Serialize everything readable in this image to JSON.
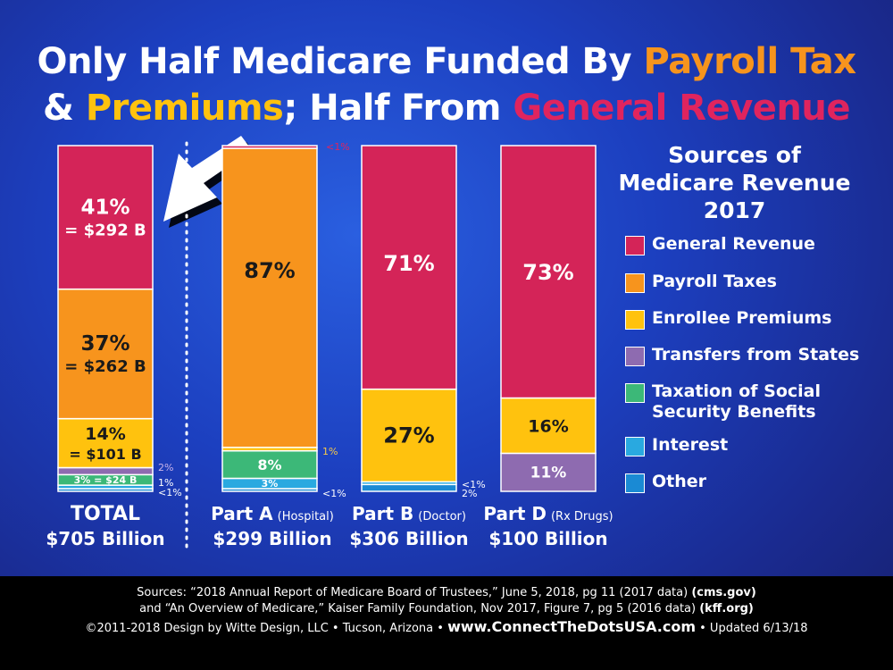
{
  "title": {
    "line1": [
      {
        "text": "Only Half Medicare Funded By ",
        "color": "#ffffff"
      },
      {
        "text": "Payroll Tax",
        "color": "#f7941d"
      }
    ],
    "line2": [
      {
        "text": "& ",
        "color": "#ffffff"
      },
      {
        "text": "Premiums",
        "color": "#ffc20e"
      },
      {
        "text": "; Half From ",
        "color": "#ffffff"
      },
      {
        "text": "General Revenue",
        "color": "#e0245e"
      }
    ]
  },
  "legend": {
    "title": [
      "Sources of",
      "Medicare Revenue",
      "2017"
    ],
    "items": [
      {
        "label": "General Revenue",
        "color": "#d42458"
      },
      {
        "label": "Payroll Taxes",
        "color": "#f7941d"
      },
      {
        "label": "Enrollee Premiums",
        "color": "#ffc20e"
      },
      {
        "label": "Transfers from States",
        "color": "#8e6bb0"
      },
      {
        "label": "Taxation of Social Security Benefits",
        "color": "#3cb878"
      },
      {
        "label": "Interest",
        "color": "#29a9e0"
      },
      {
        "label": "Other",
        "color": "#1a8ad4"
      }
    ]
  },
  "chart_data": {
    "type": "bar",
    "stacked": true,
    "normalized_percent": true,
    "categories": [
      "TOTAL",
      "Part A",
      "Part B",
      "Part D"
    ],
    "category_notes": [
      "",
      "(Hospital)",
      "(Doctor)",
      "(Rx Drugs)"
    ],
    "category_totals": [
      "$705 Billion",
      "$299 Billion",
      "$306 Billion",
      "$100 Billion"
    ],
    "series": [
      {
        "name": "General Revenue",
        "color": "#d42458",
        "values": [
          41,
          0.5,
          71,
          73
        ],
        "labels": [
          [
            "41%",
            "= $292 B"
          ],
          [
            "<1%"
          ],
          [
            "71%"
          ],
          [
            "73%"
          ]
        ]
      },
      {
        "name": "Payroll Taxes",
        "color": "#f7941d",
        "values": [
          37,
          87,
          0,
          0
        ],
        "labels": [
          [
            "37%",
            "= $262 B"
          ],
          [
            "87%"
          ],
          [],
          []
        ]
      },
      {
        "name": "Enrollee Premiums",
        "color": "#ffc20e",
        "values": [
          14,
          1,
          27,
          16
        ],
        "labels": [
          [
            "14%",
            "= $101 B"
          ],
          [
            "1%"
          ],
          [
            "27%"
          ],
          [
            "16%"
          ]
        ]
      },
      {
        "name": "Transfers from States",
        "color": "#8e6bb0",
        "values": [
          2,
          0,
          0,
          11
        ],
        "labels": [
          [
            "2%"
          ],
          [],
          [],
          [
            "11%"
          ]
        ]
      },
      {
        "name": "Taxation of Social Security Benefits",
        "color": "#3cb878",
        "values": [
          3,
          8,
          0,
          0
        ],
        "labels": [
          [
            "3% = $24 B"
          ],
          [
            "8%"
          ],
          [],
          []
        ]
      },
      {
        "name": "Interest",
        "color": "#29a9e0",
        "values": [
          1,
          3,
          0.5,
          0
        ],
        "labels": [
          [
            "1%"
          ],
          [
            "3%"
          ],
          [
            "<1%"
          ],
          []
        ]
      },
      {
        "name": "Other",
        "color": "#1a8ad4",
        "values": [
          0.5,
          0.5,
          2,
          0
        ],
        "labels": [
          [
            "<1%"
          ],
          [
            "<1%"
          ],
          [
            "2%"
          ],
          []
        ]
      }
    ],
    "ylim": [
      0,
      100
    ],
    "legend_position": "right"
  },
  "footer": {
    "line1_pre": "Sources: “2018 Annual Report of Medicare Board of Trustees,” June 5, 2018, pg 11 (2017 data) ",
    "line1_bold": "(cms.gov)",
    "line2_pre": "and “An Overview of Medicare,” Kaiser Family Foundation, Nov 2017, Figure 7, pg 5 (2016 data) ",
    "line2_bold": "(kff.org)",
    "line3_pre": "©2011-2018 Design by Witte Design, LLC • Tucson, Arizona • ",
    "line3_url": "www.ConnectTheDotsUSA.com",
    "line3_post": " • Updated 6/13/18"
  }
}
